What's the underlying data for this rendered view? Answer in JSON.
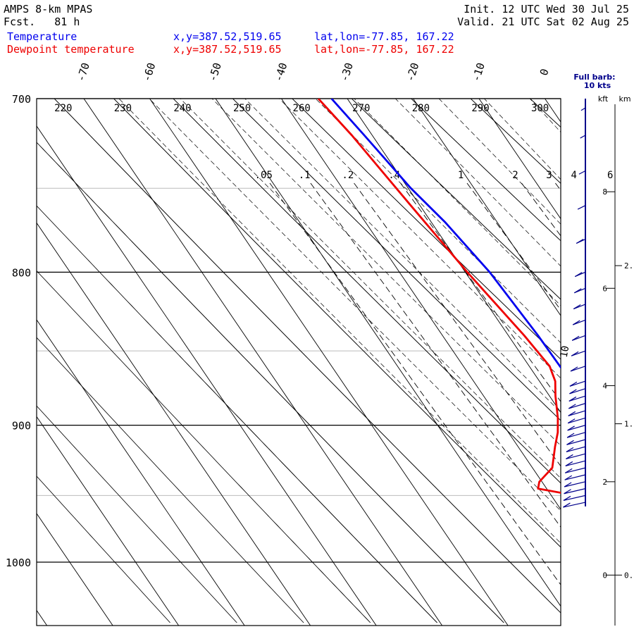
{
  "header": {
    "model": "AMPS 8-km MPAS",
    "fcst_label": "Fcst.",
    "fcst_hours": "81 h",
    "init_label": "Init.",
    "init_time": "12 UTC Wed 30 Jul 25",
    "valid_label": "Valid.",
    "valid_time": "21 UTC Sat 02 Aug 25",
    "series1_label": "Temperature",
    "series2_label": "Dewpoint temperature",
    "xy1": "x,y=387.52,519.65",
    "xy2": "x,y=387.52,519.65",
    "latlon1": "lat,lon=-77.85, 167.22",
    "latlon2": "lat,lon=-77.85, 167.22"
  },
  "barb_legend": {
    "line1": "Full barb:",
    "line2": "10 kts",
    "kft_label": "kft",
    "km_label": "km"
  },
  "colors": {
    "temperature": "#0000ee",
    "dewpoint": "#ee0000",
    "barbs": "#00008b",
    "grid": "#000000",
    "light_grid": "#bbbbbb"
  },
  "chart_data": {
    "type": "line",
    "title": "",
    "y_axis": {
      "label": "",
      "scale": "log",
      "range": [
        1040,
        700
      ],
      "ticks": [
        700,
        800,
        900,
        1000
      ],
      "light_gridlines": [
        750,
        850,
        950
      ]
    },
    "x_axis": {
      "label": "",
      "ticks": [
        -70,
        -60,
        -50,
        -40,
        -30,
        -20,
        -10,
        0
      ]
    },
    "dry_adiabat_labels": [
      220,
      230,
      240,
      250,
      260,
      270,
      280,
      290,
      300
    ],
    "mixing_ratio_labels": [
      ".05",
      ".1",
      ".2",
      ".4",
      "1",
      "2",
      "3",
      "4",
      "6"
    ],
    "mixing_ratio_values": [
      0.05,
      0.1,
      0.2,
      0.4,
      1,
      2,
      3,
      4,
      6
    ],
    "moist_label": "10",
    "series": [
      {
        "name": "Temperature",
        "p": [
          958,
          955,
          950,
          942,
          930,
          910,
          880,
          840,
          800,
          770,
          750,
          720,
          700
        ],
        "t": [
          -29.3,
          -26.0,
          -24.6,
          -24.0,
          -24.0,
          -24.9,
          -25.2,
          -25.5,
          -26.3,
          -27.9,
          -29.6,
          -31.2,
          -32.4
        ]
      },
      {
        "name": "Dewpoint temperature",
        "p": [
          956,
          950,
          945,
          940,
          930,
          915,
          905,
          895,
          880,
          870,
          860,
          840,
          800,
          760,
          720,
          700
        ],
        "t": [
          -32.2,
          -36.3,
          -41.3,
          -40.4,
          -37.0,
          -34.4,
          -32.5,
          -31.0,
          -29.1,
          -27.6,
          -26.9,
          -27.6,
          -29.7,
          -31.4,
          -33.1,
          -34.4
        ]
      }
    ],
    "wind_barbs": {
      "note": "levels from 950 to 700 hPa",
      "levels_p": [
        955,
        950,
        945,
        940,
        935,
        930,
        925,
        920,
        915,
        910,
        905,
        900,
        895,
        890,
        885,
        880,
        875,
        870,
        860,
        850,
        840,
        830,
        820,
        810,
        800,
        780,
        760,
        740,
        720,
        705
      ]
    },
    "height_axis": {
      "kft": [
        {
          "label": "8",
          "p": 752
        },
        {
          "label": "6",
          "p": 810
        },
        {
          "label": "4",
          "p": 873
        },
        {
          "label": "2",
          "p": 940
        },
        {
          "label": "0",
          "p": 1010
        }
      ],
      "km": [
        {
          "label": "2.",
          "p": 796
        },
        {
          "label": "1.",
          "p": 899
        },
        {
          "label": "0.",
          "p": 1010
        }
      ]
    }
  }
}
